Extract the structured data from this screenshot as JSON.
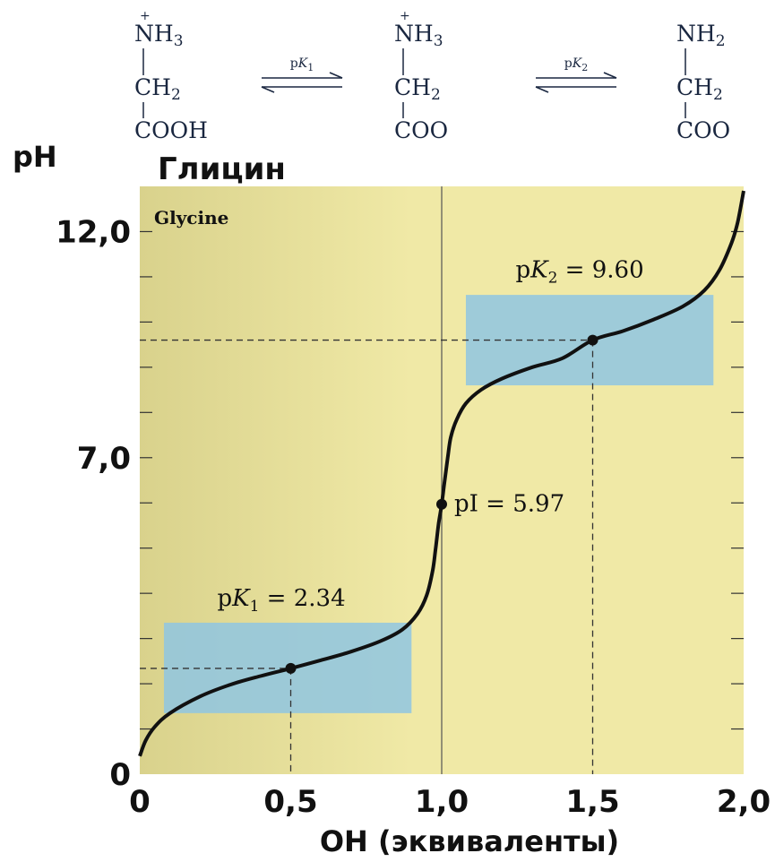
{
  "colors": {
    "plot_bg": "#f0e9a6",
    "plot_bg_left": "#d9d28c",
    "buffer_zone": "#8fc6e2",
    "curve": "#111111",
    "chem_text": "#1a2740"
  },
  "reaction": {
    "species": [
      {
        "top": "NH",
        "top_sub": "3",
        "top_charge": "+",
        "mid": "CH",
        "mid_sub": "2",
        "bottom": "COOH"
      },
      {
        "top": "NH",
        "top_sub": "3",
        "top_charge": "+",
        "mid": "CH",
        "mid_sub": "2",
        "bottom": "COO"
      },
      {
        "top": "NH",
        "top_sub": "2",
        "top_charge": "",
        "mid": "CH",
        "mid_sub": "2",
        "bottom": "COO"
      }
    ],
    "equilibria": [
      {
        "label": "p",
        "label_italic": "K",
        "label_sub": "1"
      },
      {
        "label": "p",
        "label_italic": "K",
        "label_sub": "2"
      }
    ]
  },
  "chart_data": {
    "type": "line",
    "title": "Глицин",
    "subtitle": "Glycine",
    "xlabel": "OH (эквиваленты)",
    "ylabel": "pH",
    "xlim": [
      0,
      2
    ],
    "ylim": [
      0,
      13
    ],
    "x_ticks": [
      {
        "value": 0,
        "label": "0"
      },
      {
        "value": 0.5,
        "label": "0,5"
      },
      {
        "value": 1.0,
        "label": "1,0"
      },
      {
        "value": 1.5,
        "label": "1,5"
      },
      {
        "value": 2.0,
        "label": "2,0"
      }
    ],
    "y_ticks": [
      {
        "value": 0,
        "label": "0"
      },
      {
        "value": 7,
        "label": "7,0"
      },
      {
        "value": 12,
        "label": "12,0"
      }
    ],
    "minor_y_ticks": [
      1,
      2,
      3,
      4,
      5,
      6,
      7,
      8,
      9,
      10,
      11,
      12
    ],
    "series": [
      {
        "values": [
          [
            0.0,
            0.4
          ],
          [
            0.02,
            0.75
          ],
          [
            0.05,
            1.05
          ],
          [
            0.1,
            1.35
          ],
          [
            0.2,
            1.72
          ],
          [
            0.3,
            1.98
          ],
          [
            0.4,
            2.17
          ],
          [
            0.5,
            2.34
          ],
          [
            0.6,
            2.52
          ],
          [
            0.7,
            2.71
          ],
          [
            0.8,
            2.95
          ],
          [
            0.87,
            3.2
          ],
          [
            0.92,
            3.55
          ],
          [
            0.95,
            3.95
          ],
          [
            0.97,
            4.5
          ],
          [
            0.98,
            5.0
          ],
          [
            0.99,
            5.55
          ],
          [
            1.0,
            5.97
          ],
          [
            1.01,
            6.5
          ],
          [
            1.02,
            7.0
          ],
          [
            1.03,
            7.45
          ],
          [
            1.05,
            7.85
          ],
          [
            1.08,
            8.2
          ],
          [
            1.13,
            8.5
          ],
          [
            1.2,
            8.75
          ],
          [
            1.3,
            9.0
          ],
          [
            1.4,
            9.2
          ],
          [
            1.5,
            9.6
          ],
          [
            1.6,
            9.8
          ],
          [
            1.7,
            10.05
          ],
          [
            1.8,
            10.35
          ],
          [
            1.87,
            10.7
          ],
          [
            1.92,
            11.15
          ],
          [
            1.96,
            11.75
          ],
          [
            1.98,
            12.2
          ],
          [
            2.0,
            12.9
          ]
        ]
      }
    ],
    "points": [
      {
        "x": 0.5,
        "y": 2.34,
        "label_prefix": "p",
        "label_italic": "K",
        "label_sub": "1",
        "label_value": " = 2.34"
      },
      {
        "x": 1.0,
        "y": 5.97,
        "label_prefix": "pI",
        "label_italic": "",
        "label_sub": "",
        "label_value": " = 5.97"
      },
      {
        "x": 1.5,
        "y": 9.6,
        "label_prefix": "p",
        "label_italic": "K",
        "label_sub": "2",
        "label_value": " = 9.60"
      }
    ],
    "buffer_regions": [
      {
        "x0": 0.08,
        "x1": 0.9,
        "y0": 1.35,
        "y1": 3.35
      },
      {
        "x0": 1.08,
        "x1": 1.9,
        "y0": 8.6,
        "y1": 10.6
      }
    ],
    "guide_lines": {
      "vertical_at_x": 1.0
    }
  }
}
